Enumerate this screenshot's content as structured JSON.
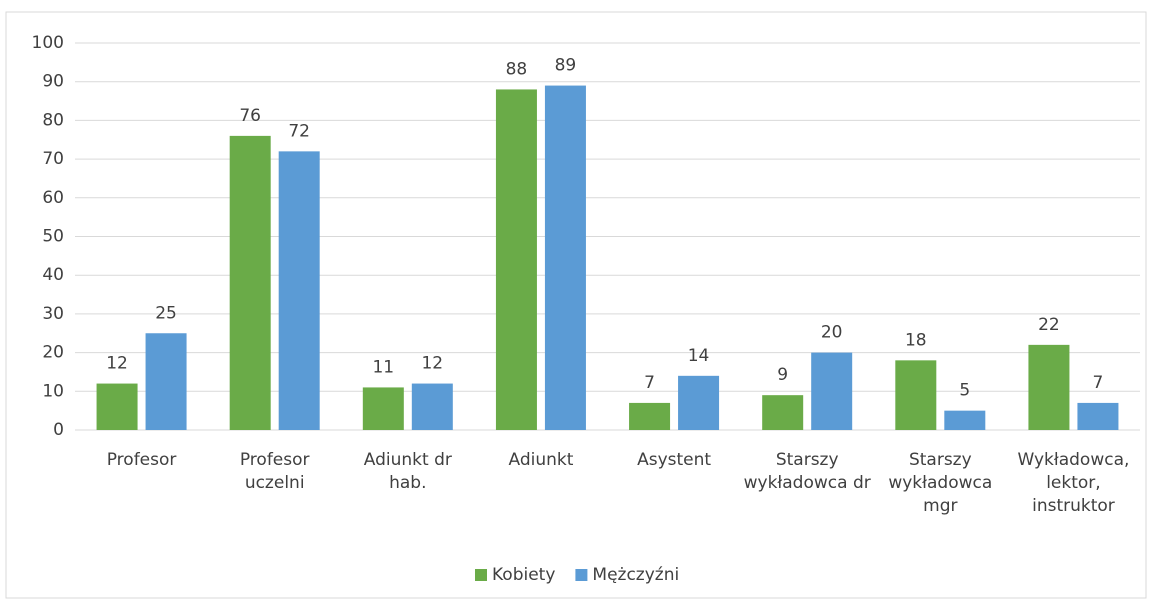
{
  "chart_data": {
    "type": "bar",
    "categories": [
      "Profesor",
      "Profesor uczelni",
      "Adiunkt dr hab.",
      "Adiunkt",
      "Asystent",
      "Starszy wykładowca dr",
      "Starszy wykładowca mgr",
      "Wykładowca, lektor, instruktor"
    ],
    "series": [
      {
        "name": "Kobiety",
        "color": "#6aab48",
        "values": [
          12,
          76,
          11,
          88,
          7,
          9,
          18,
          22
        ]
      },
      {
        "name": "Mężczyźni",
        "color": "#5b9bd5",
        "values": [
          25,
          72,
          12,
          89,
          14,
          20,
          5,
          7
        ]
      }
    ],
    "ylim": [
      0,
      100
    ],
    "yticks": [
      0,
      10,
      20,
      30,
      40,
      50,
      60,
      70,
      80,
      90,
      100
    ],
    "grid": true,
    "legend": "bottom"
  }
}
